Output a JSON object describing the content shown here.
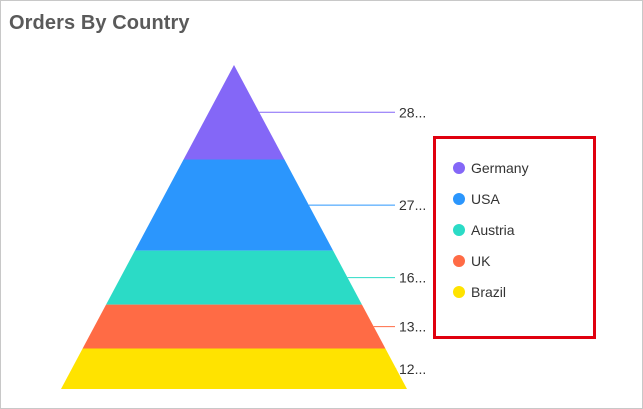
{
  "title": "Orders By Country",
  "chart_data": {
    "type": "pyramid",
    "title": "Orders By Country",
    "categories": [
      "Germany",
      "USA",
      "Austria",
      "UK",
      "Brazil"
    ],
    "labels": [
      "28...",
      "27...",
      "16...",
      "13...",
      "12..."
    ],
    "values": [
      28,
      27,
      16,
      13,
      12
    ],
    "colors": [
      "#8467f7",
      "#2b96fd",
      "#2bdbc6",
      "#ff6b45",
      "#ffe300"
    ],
    "legend_position": "right"
  }
}
